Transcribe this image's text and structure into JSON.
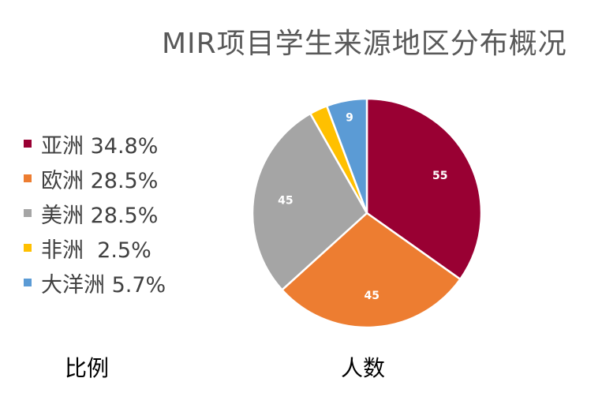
{
  "chart_data": {
    "type": "pie",
    "title": "MIR项目学生来源地区分布概况",
    "slices": [
      {
        "name": "亚洲",
        "value": 55,
        "legend_label": "亚洲 34.8%",
        "color": "#990033"
      },
      {
        "name": "欧洲",
        "value": 45,
        "legend_label": "欧洲 28.5%",
        "color": "#ED7D31"
      },
      {
        "name": "美洲",
        "value": 45,
        "legend_label": "美洲 28.5%",
        "color": "#A5A5A5"
      },
      {
        "name": "非洲",
        "value": 4,
        "legend_label": "非洲  2.5%",
        "color": "#FFC000"
      },
      {
        "name": "大洋洲",
        "value": 9,
        "legend_label": "大洋洲 5.7%",
        "color": "#5B9BD5"
      }
    ],
    "data_labels": [
      "55",
      "45",
      "45",
      "",
      "9"
    ],
    "legend_placement": "left",
    "captions": {
      "legend": "比例",
      "values": "人数"
    }
  }
}
